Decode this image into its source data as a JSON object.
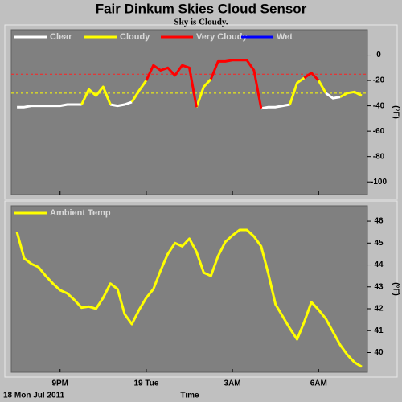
{
  "chart_data": [
    {
      "type": "line",
      "title": "Fair Dinkum Skies Cloud Sensor",
      "subtitle": "Sky is Cloudy.",
      "y_label": "(°F)",
      "x": [
        19.5,
        19.75,
        20,
        20.25,
        20.5,
        20.75,
        21,
        21.25,
        21.5,
        21.75,
        22,
        22.25,
        22.5,
        22.75,
        23,
        23.25,
        23.5,
        23.75,
        24,
        24.25,
        24.5,
        24.75,
        25,
        25.25,
        25.5,
        25.75,
        26,
        26.25,
        26.5,
        26.75,
        27,
        27.25,
        27.5,
        27.75,
        28,
        28.25,
        28.5,
        28.75,
        29,
        29.25,
        29.5,
        29.75,
        30,
        30.25,
        30.5,
        30.75,
        31,
        31.25,
        31.5
      ],
      "xlim": [
        19.3,
        31.7
      ],
      "ylim": [
        -110,
        20
      ],
      "yticks": [
        0,
        -20,
        -40,
        -60,
        -80,
        -100
      ],
      "reference_lines": [
        {
          "value": -15,
          "color": "#ff2020"
        },
        {
          "value": -30,
          "color": "#ffff00"
        }
      ],
      "series": [
        {
          "name": "Clear",
          "color": "#ffffff",
          "values": [
            -41,
            -41,
            -40,
            -40,
            -40,
            -40,
            -40,
            -39,
            -39,
            -39,
            null,
            null,
            null,
            -39,
            -40,
            -39,
            -37,
            null,
            null,
            null,
            null,
            null,
            null,
            null,
            null,
            null,
            null,
            null,
            null,
            null,
            null,
            null,
            null,
            null,
            -42,
            -41,
            -41,
            -40,
            -39,
            null,
            null,
            null,
            null,
            -30,
            -34,
            -33,
            null,
            null,
            null
          ]
        },
        {
          "name": "Cloudy",
          "color": "#ffff00",
          "values": [
            null,
            null,
            null,
            null,
            null,
            null,
            null,
            null,
            null,
            -39,
            -27,
            -32,
            -25,
            -39,
            null,
            null,
            -37,
            -28,
            -20,
            null,
            null,
            null,
            null,
            null,
            null,
            -41,
            -25,
            -19,
            null,
            null,
            null,
            null,
            null,
            null,
            null,
            null,
            null,
            null,
            -39,
            -22,
            -18,
            null,
            -20,
            -30,
            null,
            -33,
            -30,
            -29,
            -32
          ]
        },
        {
          "name": "Very Cloudy",
          "color": "#ff0000",
          "values": [
            null,
            null,
            null,
            null,
            null,
            null,
            null,
            null,
            null,
            null,
            null,
            null,
            null,
            null,
            null,
            null,
            null,
            null,
            -20,
            -8,
            -12,
            -10,
            -16,
            -8,
            -10,
            -41,
            null,
            -19,
            -5,
            -5,
            -4,
            -4,
            -4,
            -12,
            -42,
            null,
            null,
            null,
            null,
            null,
            -18,
            -14,
            -20,
            null,
            null,
            null,
            null,
            null,
            null
          ]
        },
        {
          "name": "Wet",
          "color": "#0000ff",
          "values": [
            null,
            null,
            null,
            null,
            null,
            null,
            null,
            null,
            null,
            null,
            null,
            null,
            null,
            null,
            null,
            null,
            null,
            null,
            null,
            null,
            null,
            null,
            null,
            null,
            null,
            null,
            null,
            null,
            null,
            null,
            null,
            null,
            null,
            null,
            null,
            null,
            null,
            null,
            null,
            null,
            null,
            null,
            null,
            null,
            null,
            null,
            null,
            null,
            null
          ]
        }
      ]
    },
    {
      "type": "line",
      "y_label": "(°F)",
      "x_label": "Time",
      "date_label": "18 Mon Jul 2011",
      "x": [
        19.5,
        19.75,
        20,
        20.25,
        20.5,
        20.75,
        21,
        21.25,
        21.5,
        21.75,
        22,
        22.25,
        22.5,
        22.75,
        23,
        23.25,
        23.5,
        23.75,
        24,
        24.25,
        24.5,
        24.75,
        25,
        25.25,
        25.5,
        25.75,
        26,
        26.25,
        26.5,
        26.75,
        27,
        27.25,
        27.5,
        27.75,
        28,
        28.25,
        28.5,
        28.75,
        29,
        29.25,
        29.5,
        29.75,
        30,
        30.25,
        30.5,
        30.75,
        31,
        31.25,
        31.5
      ],
      "xlim": [
        19.3,
        31.7
      ],
      "xticks": [
        {
          "value": 21,
          "label": "9PM"
        },
        {
          "value": 24,
          "label": "19 Tue"
        },
        {
          "value": 27,
          "label": "3AM"
        },
        {
          "value": 30,
          "label": "6AM"
        }
      ],
      "ylim": [
        39.1,
        46.7
      ],
      "yticks": [
        46,
        45,
        44,
        43,
        42,
        41,
        40
      ],
      "series": [
        {
          "name": "Ambient Temp",
          "color": "#ffff00",
          "values": [
            45.5,
            44.3,
            44.05,
            43.9,
            43.5,
            43.15,
            42.85,
            42.7,
            42.4,
            42.05,
            42.1,
            42,
            42.5,
            43.15,
            42.9,
            41.75,
            41.3,
            41.95,
            42.5,
            42.9,
            43.75,
            44.5,
            45,
            44.85,
            45.2,
            44.6,
            43.65,
            43.5,
            44.4,
            45.05,
            45.35,
            45.6,
            45.6,
            45.3,
            44.85,
            43.6,
            42.2,
            41.65,
            41.1,
            40.6,
            41.4,
            42.3,
            41.95,
            41.55,
            40.95,
            40.35,
            39.9,
            39.55,
            39.35
          ]
        }
      ]
    }
  ]
}
